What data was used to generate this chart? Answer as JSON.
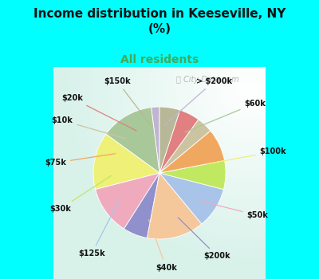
{
  "title": "Income distribution in Keeseville, NY\n(%)",
  "subtitle": "All residents",
  "title_color": "#111111",
  "subtitle_color": "#44aa55",
  "background_cyan": "#00ffff",
  "watermark": "City-Data.com",
  "labels": [
    "> $200k",
    "$60k",
    "$100k",
    "$50k",
    "$200k",
    "$40k",
    "$125k",
    "$30k",
    "$75k",
    "$10k",
    "$20k",
    "$150k"
  ],
  "values": [
    2,
    13,
    14,
    12,
    6,
    14,
    10,
    7,
    8,
    4,
    5,
    5
  ],
  "colors": [
    "#c0b4d0",
    "#a8c89a",
    "#eef078",
    "#f0aabe",
    "#9090cc",
    "#f5c89c",
    "#a8c4e8",
    "#c0e860",
    "#f0a860",
    "#ccc4a0",
    "#e08080",
    "#b8b898"
  ],
  "startangle": 90,
  "fig_width": 4.0,
  "fig_height": 3.5,
  "dpi": 100,
  "label_colors": {
    "> $200k": "#c0b4d0",
    "$60k": "#a8c89a",
    "$100k": "#eef078",
    "$50k": "#f0aabe",
    "$200k": "#9090cc",
    "$40k": "#f5c89c",
    "$125k": "#a8c4e8",
    "$30k": "#c0e860",
    "$75k": "#f0a860",
    "$10k": "#ccc4a0",
    "$20k": "#e08080",
    "$150k": "#b8b898"
  }
}
